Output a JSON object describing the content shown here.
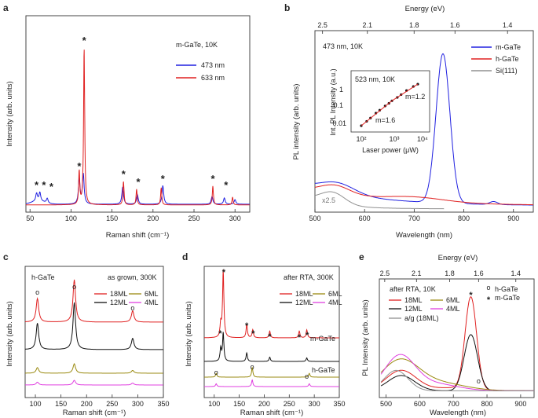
{
  "panels": {
    "a": {
      "label": "a",
      "title": "m-GaTe, 10K",
      "xlabel": "Raman shift (cm⁻¹)",
      "ylabel": "Intensity (arb. units)",
      "xticks": [
        "50",
        "100",
        "150",
        "200",
        "250",
        "300"
      ],
      "legend": [
        "473 nm",
        "633 nm"
      ],
      "star": "*"
    },
    "b": {
      "label": "b",
      "title": "473 nm, 10K",
      "xlabel": "Wavelength (nm)",
      "ylabel": "PL intensity (arb. units)",
      "top_axis_label": "Energy (eV)",
      "xticks": [
        "500",
        "600",
        "700",
        "800",
        "900"
      ],
      "top_ticks": [
        "2.5",
        "2.1",
        "1.8",
        "1.6",
        "1.4"
      ],
      "legend": [
        "m-GaTe",
        "h-GaTe",
        "Si(111)"
      ],
      "scale_note": "x2.5",
      "inset": {
        "title": "523 nm, 10K",
        "xlabel": "Laser power (μW)",
        "ylabel": "Int. PL Intensity (a.u.)",
        "yticks": [
          "1",
          "0.1",
          "0.01"
        ],
        "xticks": [
          "10²",
          "10³",
          "10⁴"
        ],
        "fit_labels": [
          "m=1.2",
          "m=1.6"
        ]
      }
    },
    "c": {
      "label": "c",
      "sample": "h-GaTe",
      "title": "as grown, 300K",
      "xlabel": "Raman shift (cm⁻¹)",
      "ylabel": "Intensity (arb. units)",
      "xticks": [
        "100",
        "150",
        "200",
        "250",
        "300",
        "350"
      ],
      "legend": [
        "18ML",
        "12ML",
        "6ML",
        "4ML"
      ],
      "marker": "o"
    },
    "d": {
      "label": "d",
      "title": "after RTA, 300K",
      "xlabel": "Raman shift (cm⁻¹)",
      "ylabel": "Intensity (arb. units)",
      "xticks": [
        "100",
        "150",
        "200",
        "250",
        "300",
        "350"
      ],
      "legend": [
        "18ML",
        "12ML",
        "6ML",
        "4ML"
      ],
      "curve_labels": [
        "m-GaTe",
        "h-GaTe"
      ],
      "star": "*",
      "marker": "o"
    },
    "e": {
      "label": "e",
      "title": "after RTA, 10K",
      "xlabel": "Wavelength (nm)",
      "ylabel": "PL Intensity (arb. units)",
      "top_axis_label": "Energy (eV)",
      "xticks": [
        "500",
        "600",
        "700",
        "800",
        "900"
      ],
      "top_ticks": [
        "2.5",
        "2.1",
        "1.8",
        "1.6",
        "1.4"
      ],
      "legend": [
        "18ML",
        "12ML",
        "6ML",
        "4ML",
        "a/g (18ML)"
      ],
      "marker_legend": [
        "h-GaTe",
        "m-GaTe"
      ],
      "star": "*",
      "marker": "o"
    }
  },
  "chart_data": [
    {
      "type": "line",
      "panel": "a",
      "title": "m-GaTe, 10K",
      "xlabel": "Raman shift (cm-1)",
      "ylabel": "Intensity (arb. units)",
      "xlim": [
        45,
        318
      ],
      "series": [
        {
          "name": "473 nm",
          "color": "#2020e0",
          "peaks": [
            [
              58,
              0.05
            ],
            [
              62,
              0.055
            ],
            [
              71,
              0.03
            ],
            [
              110,
              0.16
            ],
            [
              115,
              0.19
            ],
            [
              163,
              0.11
            ],
            [
              181,
              0.06
            ],
            [
              212,
              0.12
            ],
            [
              272,
              0.05
            ],
            [
              287,
              0.04
            ],
            [
              300,
              0.03
            ]
          ]
        },
        {
          "name": "633 nm",
          "color": "#e02020",
          "peaks": [
            [
              110,
              0.21
            ],
            [
              116,
              1.0
            ],
            [
              164,
              0.15
            ],
            [
              180,
              0.1
            ],
            [
              210,
              0.11
            ],
            [
              273,
              0.12
            ],
            [
              297,
              0.05
            ]
          ]
        }
      ],
      "starred_peaks": [
        58,
        67,
        76,
        110,
        116,
        164,
        182,
        212,
        273,
        289
      ]
    },
    {
      "type": "line",
      "panel": "b",
      "title": "473 nm, 10K",
      "xlabel": "Wavelength (nm)",
      "ylabel": "PL intensity (arb. units)",
      "xlim": [
        500,
        940
      ],
      "series": [
        {
          "name": "m-GaTe",
          "color": "#2020e0",
          "peak_nm": 758,
          "peak_rel": 1.0
        },
        {
          "name": "h-GaTe",
          "color": "#e02020",
          "peak_nm": 540,
          "peak_rel": 0.1
        },
        {
          "name": "Si(111)",
          "color": "#909090",
          "peak_nm": 535,
          "peak_rel": 0.08
        }
      ]
    },
    {
      "type": "scatter",
      "panel": "b-inset",
      "title": "523 nm, 10K",
      "xlabel": "Laser power (uW)",
      "ylabel": "Int. PL Intensity (a.u.)",
      "x": [
        100,
        150,
        200,
        300,
        400,
        600,
        800,
        1000,
        1500,
        2000,
        3000,
        5000,
        7000
      ],
      "y": [
        0.005,
        0.009,
        0.014,
        0.027,
        0.04,
        0.07,
        0.1,
        0.14,
        0.22,
        0.32,
        0.55,
        0.95,
        1.3
      ],
      "fits": [
        {
          "label": "m=1.6"
        },
        {
          "label": "m=1.2"
        }
      ]
    },
    {
      "type": "line",
      "panel": "c",
      "title": "as grown, 300K",
      "xlabel": "Raman shift (cm-1)",
      "xlim": [
        80,
        350
      ],
      "series": [
        {
          "name": "18ML",
          "color": "#e02020",
          "peaks": [
            [
              104,
              0.25
            ],
            [
              176,
              0.45
            ],
            [
              290,
              0.12
            ]
          ]
        },
        {
          "name": "12ML",
          "color": "#111111",
          "peaks": [
            [
              104,
              0.28
            ],
            [
              176,
              0.5
            ],
            [
              290,
              0.12
            ]
          ]
        },
        {
          "name": "6ML",
          "color": "#9a8a10",
          "peaks": [
            [
              104,
              0.06
            ],
            [
              176,
              0.1
            ],
            [
              290,
              0.03
            ]
          ]
        },
        {
          "name": "4ML",
          "color": "#e040e0",
          "peaks": [
            [
              104,
              0.03
            ],
            [
              176,
              0.05
            ],
            [
              290,
              0.02
            ]
          ]
        }
      ]
    },
    {
      "type": "line",
      "panel": "d",
      "title": "after RTA, 300K",
      "xlabel": "Raman shift (cm-1)",
      "xlim": [
        80,
        350
      ],
      "series": [
        {
          "name": "18ML",
          "color": "#e02020",
          "peaks": [
            [
              113,
              0.2
            ],
            [
              118,
              1.0
            ],
            [
              165,
              0.2
            ],
            [
              177,
              0.12
            ],
            [
              211,
              0.1
            ],
            [
              270,
              0.1
            ],
            [
              285,
              0.12
            ]
          ]
        },
        {
          "name": "12ML",
          "color": "#111111",
          "peaks": [
            [
              113,
              0.18
            ],
            [
              118,
              0.4
            ],
            [
              165,
              0.12
            ],
            [
              211,
              0.06
            ],
            [
              285,
              0.05
            ]
          ]
        },
        {
          "name": "6ML",
          "color": "#9a8a10",
          "peaks": [
            [
              104,
              0.04
            ],
            [
              176,
              0.1
            ],
            [
              290,
              0.04
            ]
          ]
        },
        {
          "name": "4ML",
          "color": "#e040e0",
          "peaks": [
            [
              104,
              0.03
            ],
            [
              176,
              0.07
            ],
            [
              290,
              0.03
            ]
          ]
        }
      ]
    },
    {
      "type": "line",
      "panel": "e",
      "title": "after RTA, 10K",
      "xlabel": "Wavelength (nm)",
      "xlim": [
        480,
        940
      ],
      "series": [
        {
          "name": "18ML",
          "color": "#e02020",
          "peak_nm": 752,
          "peak_rel": 0.9
        },
        {
          "name": "12ML",
          "color": "#111111",
          "peak_nm": 752,
          "peak_rel": 0.55
        },
        {
          "name": "6ML",
          "color": "#9a8a10",
          "peak_nm": 540,
          "peak_rel": 0.3
        },
        {
          "name": "4ML",
          "color": "#e040e0",
          "peak_nm": 540,
          "peak_rel": 0.33
        },
        {
          "name": "a/g (18ML)",
          "color": "#909090",
          "peak_nm": 530,
          "peak_rel": 0.22
        }
      ]
    }
  ]
}
